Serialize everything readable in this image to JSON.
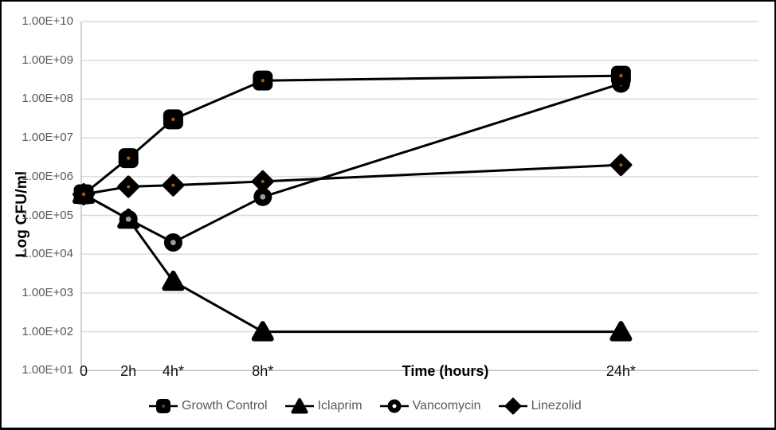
{
  "chart_data": {
    "type": "line",
    "title": "",
    "xlabel": "Time (hours)",
    "ylabel": "Log CFU/ml",
    "y_scale": "log10",
    "ylim": [
      10,
      10000000000
    ],
    "grid": "horizontal",
    "legend_position": "bottom",
    "x_hours": [
      0,
      2,
      4,
      8,
      24
    ],
    "x_tick_labels": [
      "0",
      "2h",
      "4h*",
      "8h*",
      "24h*"
    ],
    "y_ticks": [
      "1.00E+10",
      "1.00E+09",
      "1.00E+08",
      "1.00E+07",
      "1.00E+06",
      "1.00E+05",
      "1.00E+04",
      "1.00E+03",
      "1.00E+02",
      "1.00E+01"
    ],
    "series": [
      {
        "name": "Growth Control",
        "marker": "square",
        "values": [
          350000,
          3000000,
          30000000,
          300000000,
          400000000
        ]
      },
      {
        "name": "Iclaprim",
        "marker": "triangle",
        "values": [
          350000,
          80000,
          2000,
          100,
          100
        ]
      },
      {
        "name": "Vancomycin",
        "marker": "circle",
        "values": [
          350000,
          80000,
          20000,
          300000,
          250000000
        ]
      },
      {
        "name": "Linezolid",
        "marker": "diamond",
        "values": [
          350000,
          550000,
          600000,
          750000,
          2000000
        ]
      }
    ],
    "colors": {
      "line": "#000000",
      "grid": "#d9d9d9",
      "axis": "#bfbfbf",
      "y_tick_text": "#595959",
      "x_tick_text": "#111111",
      "legend_text": "#595959",
      "square_dot": "#a35c10",
      "diamond_dot": "#a35c10",
      "circle_dot": "#9e9e9e",
      "legend_square_dot": "#2e4a7a",
      "legend_circle_dot": "#ffffff"
    }
  }
}
